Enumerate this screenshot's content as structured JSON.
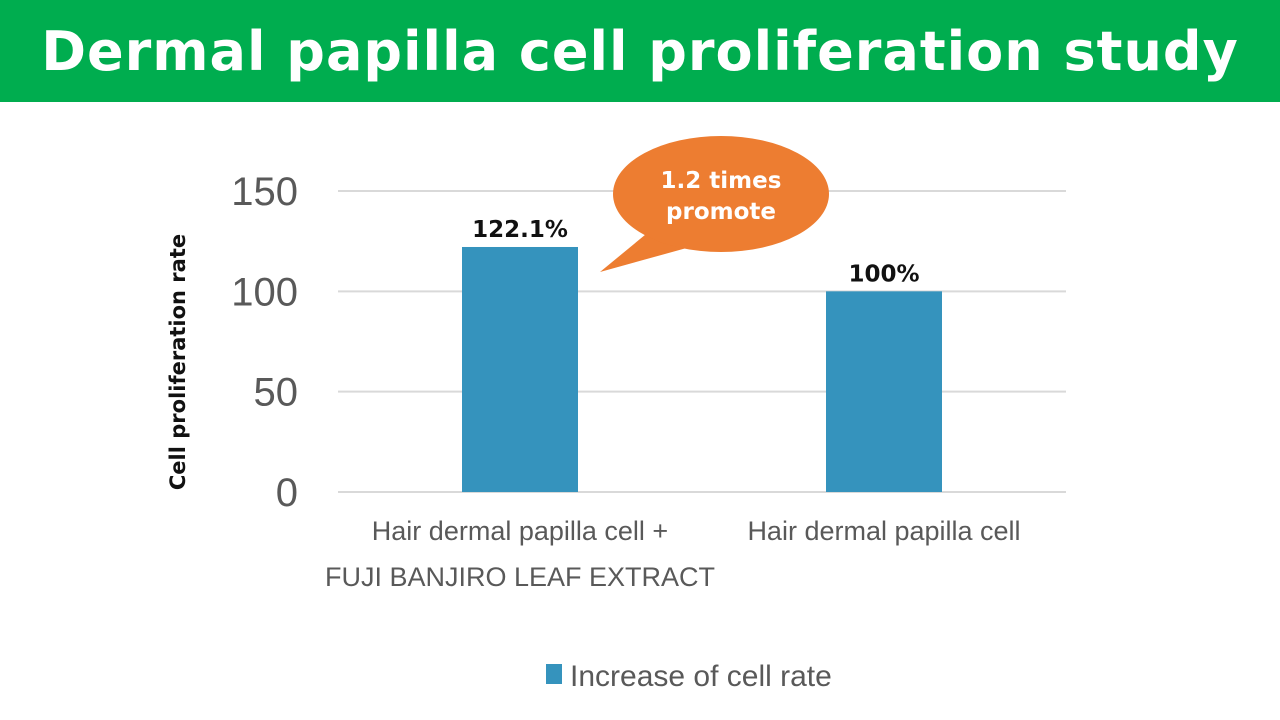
{
  "header": {
    "title": "Dermal papilla cell proliferation study"
  },
  "colors": {
    "header_bg": "#00ad4f",
    "bar": "#3593bd",
    "callout": "#ed7d31",
    "grid": "#d9d9d9"
  },
  "chart_data": {
    "type": "bar",
    "title": "Dermal papilla cell proliferation study",
    "ylabel": "Cell proliferation rate",
    "xlabel": "",
    "ylim": [
      0,
      150
    ],
    "yticks": [
      0,
      50,
      100,
      150
    ],
    "grid": true,
    "categories": [
      [
        "Hair dermal papilla cell +",
        "FUJI BANJIRO LEAF EXTRACT"
      ],
      [
        "Hair dermal papilla cell"
      ]
    ],
    "series": [
      {
        "name": "Increase of cell rate",
        "values": [
          122.1,
          100
        ]
      }
    ],
    "data_labels": [
      "122.1%",
      "100%"
    ],
    "annotation": {
      "lines": [
        "1.2 times",
        "promote"
      ],
      "target_index": 0
    },
    "legend": {
      "position": "bottom",
      "entries": [
        "Increase of cell rate"
      ]
    }
  }
}
